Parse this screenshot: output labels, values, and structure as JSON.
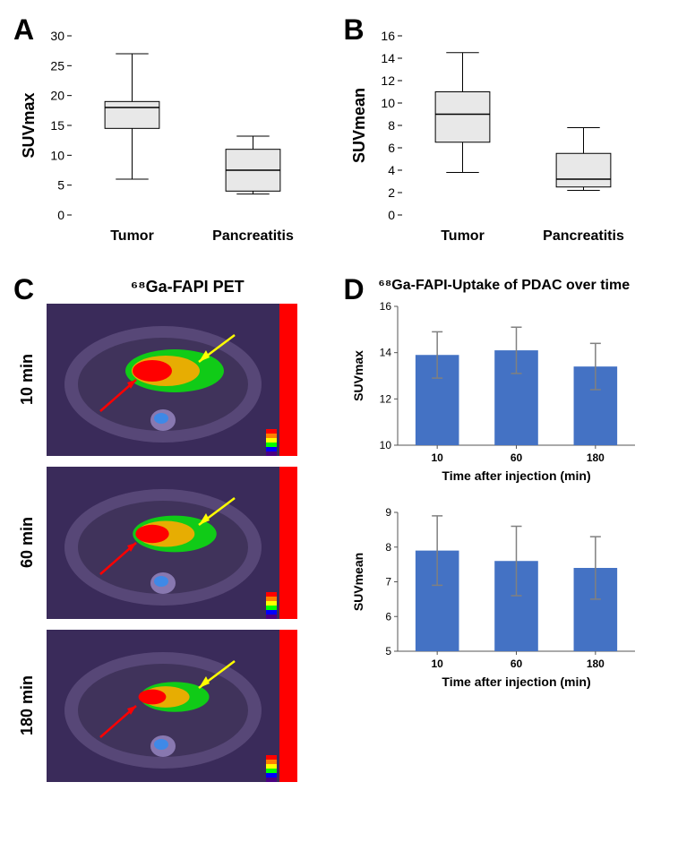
{
  "panelA": {
    "label": "A",
    "ylabel": "SUVmax",
    "ylim": [
      0,
      30
    ],
    "ytick_step": 5,
    "categories": [
      "Tumor",
      "Pancreatitis"
    ],
    "boxes": [
      {
        "min": 6,
        "q1": 14.5,
        "median": 18,
        "q3": 19,
        "max": 27
      },
      {
        "min": 3.5,
        "q1": 4,
        "median": 7.5,
        "q3": 11,
        "max": 13.2
      }
    ],
    "box_fill": "#e8e8e8",
    "stroke": "#000000",
    "label_fontsize": 18,
    "tick_fontsize": 14,
    "cat_fontsize": 16
  },
  "panelB": {
    "label": "B",
    "ylabel": "SUVmean",
    "ylim": [
      0,
      16
    ],
    "ytick_step": 2,
    "categories": [
      "Tumor",
      "Pancreatitis"
    ],
    "boxes": [
      {
        "min": 3.8,
        "q1": 6.5,
        "median": 9,
        "q3": 11,
        "max": 14.5
      },
      {
        "min": 2.2,
        "q1": 2.5,
        "median": 3.2,
        "q3": 5.5,
        "max": 7.8
      }
    ],
    "box_fill": "#e8e8e8",
    "stroke": "#000000",
    "label_fontsize": 18,
    "tick_fontsize": 14,
    "cat_fontsize": 16
  },
  "panelC": {
    "label": "C",
    "title": "⁶⁸Ga-FAPI PET",
    "timepoints": [
      "10 min",
      "60 min",
      "180 min"
    ],
    "arrow_red": "#ff0000",
    "arrow_yellow": "#ffff00",
    "scan_bg": "#3a2b5a",
    "body_color": "#6a5a8a",
    "hot_center": "#ff0000",
    "hot_mid": "#ffaa00",
    "hot_outer": "#00ff00",
    "colorbar": [
      "#ff0000",
      "#ff7f00",
      "#ffff00",
      "#00ff00",
      "#0000ff",
      "#4b0082"
    ]
  },
  "panelD": {
    "label": "D",
    "title": "⁶⁸Ga-FAPI-Uptake of PDAC over time",
    "xlabel": "Time after injection (min)",
    "bar_color": "#4472c4",
    "err_color": "#808080",
    "charts": [
      {
        "ylabel": "SUVmax",
        "ylim": [
          10,
          16
        ],
        "yticks": [
          10,
          12,
          14,
          16
        ],
        "categories": [
          "10",
          "60",
          "180"
        ],
        "values": [
          13.9,
          14.1,
          13.4
        ],
        "err": [
          1.0,
          1.0,
          1.0
        ]
      },
      {
        "ylabel": "SUVmean",
        "ylim": [
          5,
          9
        ],
        "yticks": [
          5,
          6,
          7,
          8,
          9
        ],
        "categories": [
          "10",
          "60",
          "180"
        ],
        "values": [
          7.9,
          7.6,
          7.4
        ],
        "err": [
          1.0,
          1.0,
          0.9
        ]
      }
    ],
    "label_fontsize": 14,
    "tick_fontsize": 12
  }
}
